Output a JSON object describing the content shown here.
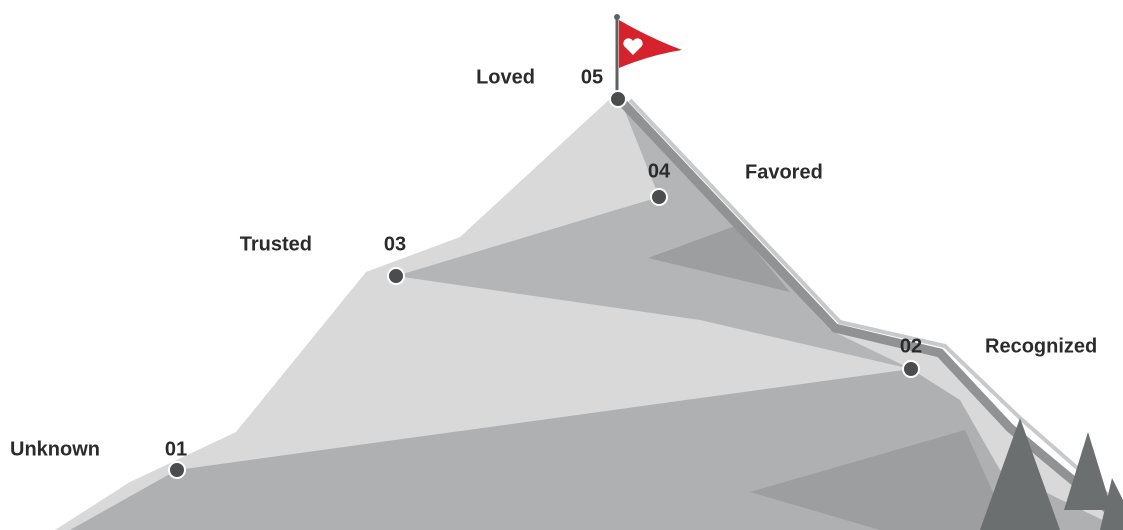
{
  "stages": [
    {
      "number": "01",
      "label": "Unknown"
    },
    {
      "number": "02",
      "label": "Recognized"
    },
    {
      "number": "03",
      "label": "Trusted"
    },
    {
      "number": "04",
      "label": "Favored"
    },
    {
      "number": "05",
      "label": "Loved"
    }
  ]
}
